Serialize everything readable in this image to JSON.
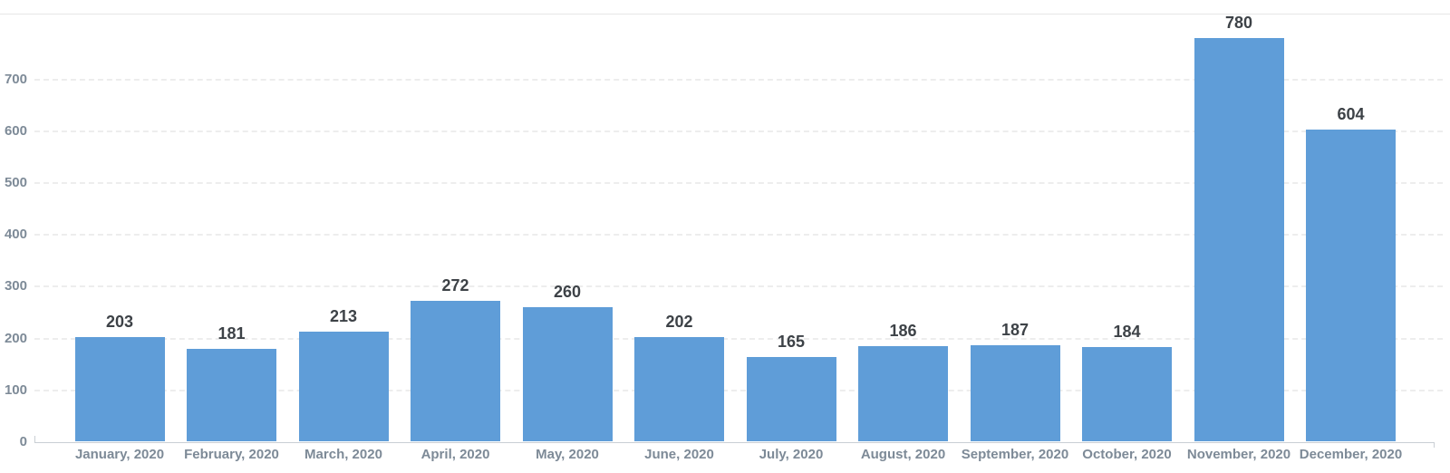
{
  "chart_data": {
    "type": "bar",
    "title": "",
    "xlabel": "",
    "ylabel": "",
    "categories": [
      "January, 2020",
      "February, 2020",
      "March, 2020",
      "April, 2020",
      "May, 2020",
      "June, 2020",
      "July, 2020",
      "August, 2020",
      "September, 2020",
      "October, 2020",
      "November, 2020",
      "December, 2020"
    ],
    "values": [
      203,
      181,
      213,
      272,
      260,
      202,
      165,
      186,
      187,
      184,
      780,
      604
    ],
    "value_labels_shown": true,
    "ylim": [
      0,
      800
    ],
    "yticks": [
      0,
      100,
      200,
      300,
      400,
      500,
      600,
      700
    ],
    "grid": "horizontal-dashed",
    "legend": "none",
    "bar_color": "#5f9dd8"
  },
  "colors": {
    "bar": "#5f9dd8",
    "value_label": "#3d4247",
    "axis_label": "#7d8a97",
    "gridline": "#ededed",
    "axis_line": "#c9ced4",
    "top_divider": "#e7e7e7",
    "background": "#ffffff"
  }
}
